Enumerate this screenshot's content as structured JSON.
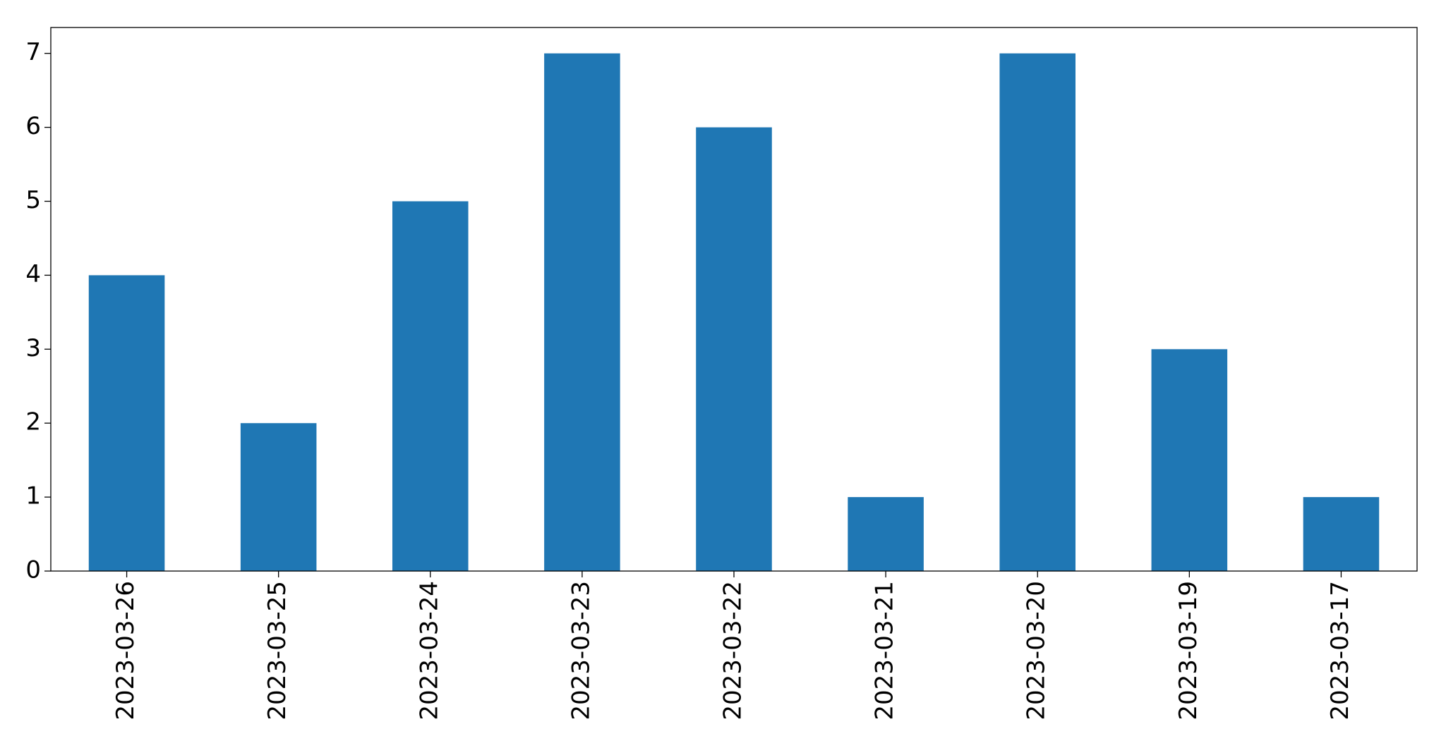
{
  "chart_data": {
    "type": "bar",
    "categories": [
      "2023-03-26",
      "2023-03-25",
      "2023-03-24",
      "2023-03-23",
      "2023-03-22",
      "2023-03-21",
      "2023-03-20",
      "2023-03-19",
      "2023-03-17"
    ],
    "values": [
      4,
      2,
      5,
      7,
      6,
      1,
      7,
      3,
      1
    ],
    "color": "#1f77b4",
    "ylim": [
      0,
      7.35
    ],
    "yticks": [
      0,
      1,
      2,
      3,
      4,
      5,
      6,
      7
    ],
    "grid": false
  }
}
